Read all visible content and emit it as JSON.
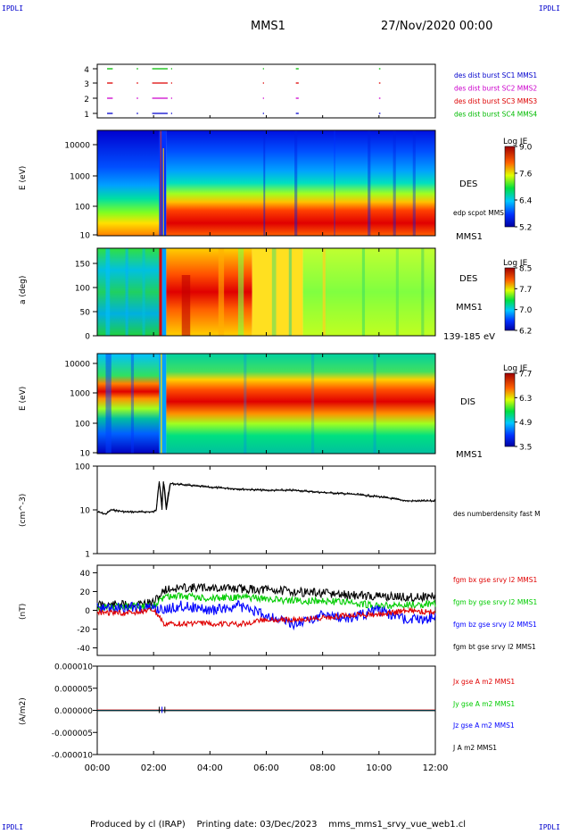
{
  "header": {
    "corner_tl": "IPDLI",
    "corner_tr": "IPDLI",
    "corner_bl": "IPDLI",
    "corner_br": "IPDLI",
    "mission": "MMS1",
    "date": "27/Nov/2020 00:00"
  },
  "footer": {
    "produced": "Produced by cl (IRAP)",
    "printing": "Printing date: 03/Dec/2023",
    "file": "mms_mms1_srvy_vue_web1.cl"
  },
  "time_axis": {
    "ticks": [
      "00:00",
      "02:00",
      "04:00",
      "06:00",
      "08:00",
      "10:00",
      "12:00"
    ],
    "range_hours": [
      0,
      12
    ]
  },
  "colors": {
    "bx": "#e00000",
    "by": "#00cc00",
    "bz": "#0000ff",
    "bt": "#000000",
    "sc1": "#0000cc",
    "sc2": "#cc00cc",
    "sc3": "#dd0000",
    "sc4": "#00bb00"
  },
  "chart_data": [
    {
      "type": "scatter",
      "id": "burst",
      "ylabel": "",
      "yticks": [
        "1",
        "2",
        "3",
        "4"
      ],
      "legend": [
        {
          "label": "des dist burst SC1 MMS1",
          "color": "#0000cc"
        },
        {
          "label": "des dist burst SC2 MMS2",
          "color": "#cc00cc"
        },
        {
          "label": "des dist burst SC3 MMS3",
          "color": "#dd0000"
        },
        {
          "label": "des dist burst SC4 MMS4",
          "color": "#00bb00"
        }
      ],
      "intervals_hours": [
        [
          0.35,
          0.55
        ],
        [
          1.4,
          1.45
        ],
        [
          1.95,
          2.5
        ],
        [
          2.62,
          2.66
        ],
        [
          5.88,
          5.92
        ],
        [
          7.05,
          7.15
        ],
        [
          10.0,
          10.05
        ]
      ]
    },
    {
      "type": "heatmap",
      "id": "des_energy",
      "ylabel": "E (eV)",
      "yticks": [
        "10",
        "100",
        "1000",
        "10000"
      ],
      "ylim": [
        10,
        30000
      ],
      "yscale": "log",
      "label_right": "DES",
      "label_right2": "MMS1",
      "overlay_label": "edp scpot MMS1",
      "colorbar": {
        "title": "Log JE",
        "ticks": [
          "9.0",
          "7.6",
          "6.4",
          "5.2"
        ],
        "range": [
          5.2,
          9.0
        ]
      }
    },
    {
      "type": "heatmap",
      "id": "des_pitch",
      "ylabel": "a (deg)",
      "yticks": [
        "0",
        "50",
        "100",
        "150"
      ],
      "ylim": [
        0,
        180
      ],
      "label_right": "DES",
      "label_right2": "MMS1",
      "label_right3": "139-185 eV",
      "colorbar": {
        "title": "Log JE",
        "ticks": [
          "8.5",
          "7.7",
          "7.0",
          "6.2"
        ],
        "range": [
          6.2,
          8.5
        ]
      }
    },
    {
      "type": "heatmap",
      "id": "dis_energy",
      "ylabel": "E (eV)",
      "yticks": [
        "10",
        "100",
        "1000",
        "10000"
      ],
      "ylim": [
        10,
        30000
      ],
      "yscale": "log",
      "label_right": "DIS",
      "label_right2": "MMS1",
      "colorbar": {
        "title": "Log JE",
        "ticks": [
          "7.7",
          "6.3",
          "4.9",
          "3.5"
        ],
        "range": [
          3.5,
          7.7
        ]
      }
    },
    {
      "type": "line",
      "id": "density",
      "ylabel": "(cm^-3)",
      "yticks": [
        "1",
        "10",
        "100"
      ],
      "ylim": [
        1,
        100
      ],
      "yscale": "log",
      "legend": [
        {
          "label": "des numberdensity fast M",
          "color": "#000000"
        }
      ],
      "series": [
        {
          "name": "des numberdensity fast M",
          "x": [
            0.0,
            0.3,
            0.5,
            1.0,
            1.5,
            2.0,
            2.1,
            2.2,
            2.3,
            2.35,
            2.45,
            2.6,
            3.0,
            3.5,
            4.0,
            5.0,
            6.0,
            7.0,
            8.0,
            9.0,
            10.0,
            10.5,
            11.0,
            11.5,
            12.0
          ],
          "values": [
            9,
            8,
            10,
            9,
            9,
            9,
            10,
            45,
            10,
            45,
            10,
            40,
            38,
            35,
            33,
            30,
            28,
            28,
            25,
            23,
            20,
            18,
            16,
            16,
            16
          ]
        }
      ]
    },
    {
      "type": "line",
      "id": "bfield",
      "ylabel": "(nT)",
      "yticks": [
        "-40",
        "-20",
        "0",
        "20",
        "40"
      ],
      "ylim": [
        -48,
        48
      ],
      "legend": [
        {
          "label": "fgm bx gse srvy l2 MMS1",
          "color": "#e00000"
        },
        {
          "label": "fgm by gse srvy l2 MMS1",
          "color": "#00cc00"
        },
        {
          "label": "fgm bz gse srvy l2 MMS1",
          "color": "#0000ff"
        },
        {
          "label": "fgm bt gse srvy l2 MMS1",
          "color": "#000000"
        }
      ],
      "series": [
        {
          "name": "fgm bt gse srvy l2 MMS1",
          "x": [
            0,
            1,
            2,
            2.4,
            3,
            4,
            5,
            6,
            7,
            8,
            9,
            10,
            11,
            12
          ],
          "values": [
            6,
            6,
            8,
            22,
            24,
            24,
            23,
            22,
            20,
            18,
            16,
            15,
            14,
            15
          ]
        },
        {
          "name": "fgm by gse srvy l2 MMS1",
          "x": [
            0,
            1,
            2,
            2.4,
            3,
            4,
            5,
            6,
            7,
            8,
            9,
            10,
            11,
            12
          ],
          "values": [
            3,
            4,
            4,
            15,
            15,
            13,
            14,
            12,
            10,
            10,
            8,
            5,
            6,
            7
          ]
        },
        {
          "name": "fgm bz gse srvy l2 MMS1",
          "x": [
            0,
            1,
            2,
            2.4,
            3,
            4,
            5,
            6,
            7,
            8,
            9,
            10,
            11,
            12
          ],
          "values": [
            2,
            3,
            2,
            0,
            5,
            0,
            5,
            -5,
            -15,
            -5,
            -8,
            0,
            -10,
            -8
          ]
        },
        {
          "name": "fgm bx gse srvy l2 MMS1",
          "x": [
            0,
            1,
            2,
            2.4,
            3,
            4,
            5,
            6,
            7,
            8,
            9,
            10,
            11,
            12
          ],
          "values": [
            -2,
            -3,
            0,
            -15,
            -14,
            -14,
            -15,
            -10,
            -10,
            -8,
            -5,
            -5,
            0,
            -2
          ]
        }
      ]
    },
    {
      "type": "line",
      "id": "current",
      "ylabel": "(A/m2)",
      "yticks": [
        "0.000010",
        "0.000005",
        "0.000000",
        "-0.000005",
        "-0.000010"
      ],
      "ylim": [
        -1e-05,
        1e-05
      ],
      "legend": [
        {
          "label": "Jx gse A m2 MMS1",
          "color": "#e00000"
        },
        {
          "label": "Jy gse A m2 MMS1",
          "color": "#00cc00"
        },
        {
          "label": "Jz gse A m2 MMS1",
          "color": "#0000ff"
        },
        {
          "label": "J A m2 MMS1",
          "color": "#000000"
        }
      ],
      "series": [
        {
          "name": "J A m2 MMS1",
          "x": [
            0,
            2.2,
            2.3,
            2.4,
            12
          ],
          "values": [
            0,
            0,
            8e-07,
            0,
            0
          ]
        }
      ]
    }
  ]
}
